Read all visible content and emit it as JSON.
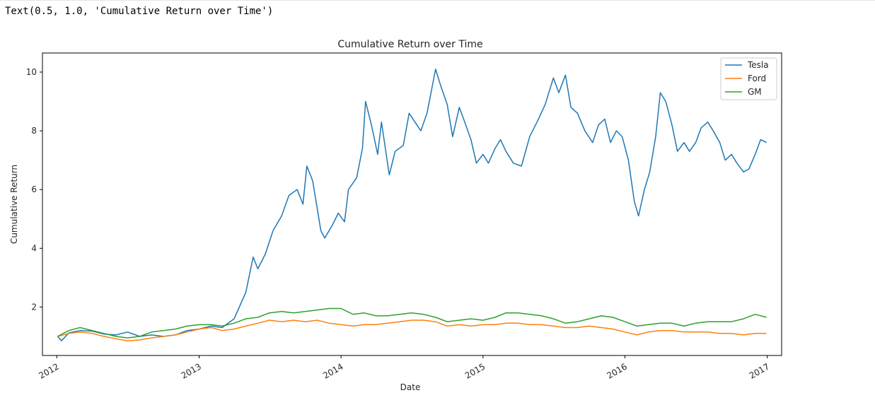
{
  "output": {
    "text": "Text(0.5, 1.0, 'Cumulative Return over Time')"
  },
  "chart_data": {
    "type": "line",
    "title": "Cumulative Return over Time",
    "xlabel": "Date",
    "ylabel": "Cumulative Return",
    "xlim": [
      "2011-11-25",
      "2017-02-07"
    ],
    "ylim": [
      0.35,
      10.65
    ],
    "x_ticks": [
      "2012",
      "2013",
      "2014",
      "2015",
      "2016",
      "2017"
    ],
    "y_ticks": [
      2,
      4,
      6,
      8,
      10
    ],
    "grid": false,
    "legend_position": "top-right",
    "series": [
      {
        "name": "Tesla",
        "color": "#1f77b4",
        "points": [
          [
            "2012-01-03",
            1.0
          ],
          [
            "2012-01-13",
            0.85
          ],
          [
            "2012-02-01",
            1.12
          ],
          [
            "2012-03-01",
            1.2
          ],
          [
            "2012-04-01",
            1.18
          ],
          [
            "2012-05-01",
            1.08
          ],
          [
            "2012-06-01",
            1.05
          ],
          [
            "2012-07-01",
            1.15
          ],
          [
            "2012-08-01",
            1.0
          ],
          [
            "2012-09-01",
            1.05
          ],
          [
            "2012-10-01",
            1.0
          ],
          [
            "2012-11-01",
            1.05
          ],
          [
            "2012-12-01",
            1.2
          ],
          [
            "2013-01-01",
            1.25
          ],
          [
            "2013-02-01",
            1.35
          ],
          [
            "2013-03-01",
            1.3
          ],
          [
            "2013-04-01",
            1.6
          ],
          [
            "2013-05-01",
            2.5
          ],
          [
            "2013-05-20",
            3.7
          ],
          [
            "2013-06-01",
            3.3
          ],
          [
            "2013-06-20",
            3.8
          ],
          [
            "2013-07-10",
            4.6
          ],
          [
            "2013-08-01",
            5.1
          ],
          [
            "2013-08-20",
            5.8
          ],
          [
            "2013-09-10",
            6.0
          ],
          [
            "2013-09-25",
            5.5
          ],
          [
            "2013-10-05",
            6.8
          ],
          [
            "2013-10-20",
            6.3
          ],
          [
            "2013-11-10",
            4.6
          ],
          [
            "2013-11-20",
            4.35
          ],
          [
            "2013-12-10",
            4.8
          ],
          [
            "2013-12-25",
            5.2
          ],
          [
            "2014-01-10",
            4.9
          ],
          [
            "2014-01-20",
            6.0
          ],
          [
            "2014-02-10",
            6.4
          ],
          [
            "2014-02-25",
            7.4
          ],
          [
            "2014-03-05",
            9.0
          ],
          [
            "2014-03-20",
            8.2
          ],
          [
            "2014-04-05",
            7.2
          ],
          [
            "2014-04-15",
            8.3
          ],
          [
            "2014-05-05",
            6.5
          ],
          [
            "2014-05-20",
            7.3
          ],
          [
            "2014-06-10",
            7.5
          ],
          [
            "2014-06-25",
            8.6
          ],
          [
            "2014-07-10",
            8.3
          ],
          [
            "2014-07-25",
            8.0
          ],
          [
            "2014-08-10",
            8.6
          ],
          [
            "2014-09-01",
            10.1
          ],
          [
            "2014-09-15",
            9.5
          ],
          [
            "2014-10-01",
            8.9
          ],
          [
            "2014-10-15",
            7.8
          ],
          [
            "2014-11-01",
            8.8
          ],
          [
            "2014-11-15",
            8.3
          ],
          [
            "2014-12-01",
            7.7
          ],
          [
            "2014-12-15",
            6.9
          ],
          [
            "2015-01-01",
            7.2
          ],
          [
            "2015-01-15",
            6.9
          ],
          [
            "2015-02-01",
            7.4
          ],
          [
            "2015-02-15",
            7.7
          ],
          [
            "2015-03-01",
            7.3
          ],
          [
            "2015-03-20",
            6.9
          ],
          [
            "2015-04-10",
            6.8
          ],
          [
            "2015-05-01",
            7.8
          ],
          [
            "2015-05-20",
            8.3
          ],
          [
            "2015-06-10",
            8.9
          ],
          [
            "2015-07-01",
            9.8
          ],
          [
            "2015-07-15",
            9.3
          ],
          [
            "2015-08-01",
            9.9
          ],
          [
            "2015-08-15",
            8.8
          ],
          [
            "2015-09-01",
            8.6
          ],
          [
            "2015-09-20",
            8.0
          ],
          [
            "2015-10-10",
            7.6
          ],
          [
            "2015-10-25",
            8.2
          ],
          [
            "2015-11-10",
            8.4
          ],
          [
            "2015-11-25",
            7.6
          ],
          [
            "2015-12-10",
            8.0
          ],
          [
            "2015-12-25",
            7.8
          ],
          [
            "2016-01-10",
            7.0
          ],
          [
            "2016-01-25",
            5.6
          ],
          [
            "2016-02-05",
            5.1
          ],
          [
            "2016-02-20",
            6.0
          ],
          [
            "2016-03-05",
            6.6
          ],
          [
            "2016-03-20",
            7.8
          ],
          [
            "2016-04-01",
            9.3
          ],
          [
            "2016-04-15",
            9.0
          ],
          [
            "2016-05-01",
            8.2
          ],
          [
            "2016-05-15",
            7.3
          ],
          [
            "2016-06-01",
            7.6
          ],
          [
            "2016-06-15",
            7.3
          ],
          [
            "2016-07-01",
            7.6
          ],
          [
            "2016-07-15",
            8.1
          ],
          [
            "2016-08-01",
            8.3
          ],
          [
            "2016-08-15",
            8.0
          ],
          [
            "2016-09-01",
            7.6
          ],
          [
            "2016-09-15",
            7.0
          ],
          [
            "2016-10-01",
            7.2
          ],
          [
            "2016-10-15",
            6.9
          ],
          [
            "2016-11-01",
            6.6
          ],
          [
            "2016-11-15",
            6.7
          ],
          [
            "2016-12-01",
            7.2
          ],
          [
            "2016-12-15",
            7.7
          ],
          [
            "2016-12-30",
            7.6
          ]
        ]
      },
      {
        "name": "Ford",
        "color": "#ff7f0e",
        "points": [
          [
            "2012-01-03",
            1.0
          ],
          [
            "2012-02-01",
            1.1
          ],
          [
            "2012-03-01",
            1.15
          ],
          [
            "2012-04-01",
            1.1
          ],
          [
            "2012-05-01",
            1.0
          ],
          [
            "2012-06-01",
            0.92
          ],
          [
            "2012-07-01",
            0.85
          ],
          [
            "2012-08-01",
            0.88
          ],
          [
            "2012-09-01",
            0.95
          ],
          [
            "2012-10-01",
            1.0
          ],
          [
            "2012-11-01",
            1.05
          ],
          [
            "2012-12-01",
            1.15
          ],
          [
            "2013-01-01",
            1.25
          ],
          [
            "2013-02-01",
            1.3
          ],
          [
            "2013-03-01",
            1.2
          ],
          [
            "2013-04-01",
            1.25
          ],
          [
            "2013-05-01",
            1.35
          ],
          [
            "2013-06-01",
            1.45
          ],
          [
            "2013-07-01",
            1.55
          ],
          [
            "2013-08-01",
            1.5
          ],
          [
            "2013-09-01",
            1.55
          ],
          [
            "2013-10-01",
            1.5
          ],
          [
            "2013-11-01",
            1.55
          ],
          [
            "2013-12-01",
            1.45
          ],
          [
            "2014-01-01",
            1.4
          ],
          [
            "2014-02-01",
            1.35
          ],
          [
            "2014-03-01",
            1.4
          ],
          [
            "2014-04-01",
            1.4
          ],
          [
            "2014-05-01",
            1.45
          ],
          [
            "2014-06-01",
            1.5
          ],
          [
            "2014-07-01",
            1.55
          ],
          [
            "2014-08-01",
            1.55
          ],
          [
            "2014-09-01",
            1.5
          ],
          [
            "2014-10-01",
            1.35
          ],
          [
            "2014-11-01",
            1.4
          ],
          [
            "2014-12-01",
            1.35
          ],
          [
            "2015-01-01",
            1.4
          ],
          [
            "2015-02-01",
            1.4
          ],
          [
            "2015-03-01",
            1.45
          ],
          [
            "2015-04-01",
            1.45
          ],
          [
            "2015-05-01",
            1.4
          ],
          [
            "2015-06-01",
            1.4
          ],
          [
            "2015-07-01",
            1.35
          ],
          [
            "2015-08-01",
            1.3
          ],
          [
            "2015-09-01",
            1.3
          ],
          [
            "2015-10-01",
            1.35
          ],
          [
            "2015-11-01",
            1.3
          ],
          [
            "2015-12-01",
            1.25
          ],
          [
            "2016-01-01",
            1.15
          ],
          [
            "2016-02-01",
            1.05
          ],
          [
            "2016-03-01",
            1.15
          ],
          [
            "2016-04-01",
            1.2
          ],
          [
            "2016-05-01",
            1.2
          ],
          [
            "2016-06-01",
            1.15
          ],
          [
            "2016-07-01",
            1.15
          ],
          [
            "2016-08-01",
            1.15
          ],
          [
            "2016-09-01",
            1.1
          ],
          [
            "2016-10-01",
            1.1
          ],
          [
            "2016-11-01",
            1.05
          ],
          [
            "2016-12-01",
            1.1
          ],
          [
            "2016-12-30",
            1.1
          ]
        ]
      },
      {
        "name": "GM",
        "color": "#2ca02c",
        "points": [
          [
            "2012-01-03",
            1.0
          ],
          [
            "2012-02-01",
            1.2
          ],
          [
            "2012-03-01",
            1.3
          ],
          [
            "2012-04-01",
            1.2
          ],
          [
            "2012-05-01",
            1.1
          ],
          [
            "2012-06-01",
            1.0
          ],
          [
            "2012-07-01",
            0.95
          ],
          [
            "2012-08-01",
            1.0
          ],
          [
            "2012-09-01",
            1.15
          ],
          [
            "2012-10-01",
            1.2
          ],
          [
            "2012-11-01",
            1.25
          ],
          [
            "2012-12-01",
            1.35
          ],
          [
            "2013-01-01",
            1.4
          ],
          [
            "2013-02-01",
            1.4
          ],
          [
            "2013-03-01",
            1.35
          ],
          [
            "2013-04-01",
            1.45
          ],
          [
            "2013-05-01",
            1.6
          ],
          [
            "2013-06-01",
            1.65
          ],
          [
            "2013-07-01",
            1.8
          ],
          [
            "2013-08-01",
            1.85
          ],
          [
            "2013-09-01",
            1.8
          ],
          [
            "2013-10-01",
            1.85
          ],
          [
            "2013-11-01",
            1.9
          ],
          [
            "2013-12-01",
            1.95
          ],
          [
            "2014-01-01",
            1.95
          ],
          [
            "2014-02-01",
            1.75
          ],
          [
            "2014-03-01",
            1.8
          ],
          [
            "2014-04-01",
            1.7
          ],
          [
            "2014-05-01",
            1.7
          ],
          [
            "2014-06-01",
            1.75
          ],
          [
            "2014-07-01",
            1.8
          ],
          [
            "2014-08-01",
            1.75
          ],
          [
            "2014-09-01",
            1.65
          ],
          [
            "2014-10-01",
            1.5
          ],
          [
            "2014-11-01",
            1.55
          ],
          [
            "2014-12-01",
            1.6
          ],
          [
            "2015-01-01",
            1.55
          ],
          [
            "2015-02-01",
            1.65
          ],
          [
            "2015-03-01",
            1.8
          ],
          [
            "2015-04-01",
            1.8
          ],
          [
            "2015-05-01",
            1.75
          ],
          [
            "2015-06-01",
            1.7
          ],
          [
            "2015-07-01",
            1.6
          ],
          [
            "2015-08-01",
            1.45
          ],
          [
            "2015-09-01",
            1.5
          ],
          [
            "2015-10-01",
            1.6
          ],
          [
            "2015-11-01",
            1.7
          ],
          [
            "2015-12-01",
            1.65
          ],
          [
            "2016-01-01",
            1.5
          ],
          [
            "2016-02-01",
            1.35
          ],
          [
            "2016-03-01",
            1.4
          ],
          [
            "2016-04-01",
            1.45
          ],
          [
            "2016-05-01",
            1.45
          ],
          [
            "2016-06-01",
            1.35
          ],
          [
            "2016-07-01",
            1.45
          ],
          [
            "2016-08-01",
            1.5
          ],
          [
            "2016-09-01",
            1.5
          ],
          [
            "2016-10-01",
            1.5
          ],
          [
            "2016-11-01",
            1.6
          ],
          [
            "2016-12-01",
            1.75
          ],
          [
            "2016-12-30",
            1.65
          ]
        ]
      }
    ]
  }
}
